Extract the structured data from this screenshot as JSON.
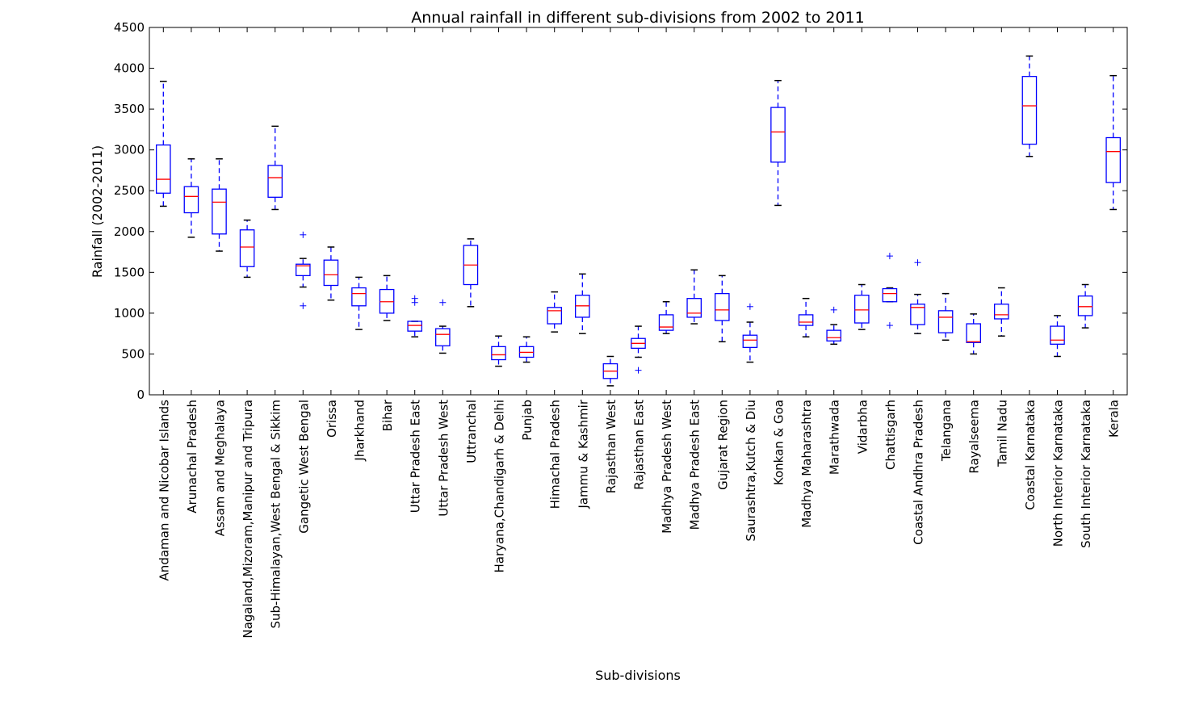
{
  "chart_data": {
    "type": "box",
    "title": "Annual rainfall in different sub-divisions from 2002 to 2011",
    "xlabel": "Sub-divisions",
    "ylabel": "Rainfall (2002-2011)",
    "ylim": [
      0,
      4500
    ],
    "yticks": [
      0,
      500,
      1000,
      1500,
      2000,
      2500,
      3000,
      3500,
      4000,
      4500
    ],
    "grid": false,
    "colors": {
      "box": "#0000ff",
      "median": "#ff0000",
      "whisker": "#0000ff",
      "flier": "#0000ff",
      "axes": "#000000"
    },
    "categories": [
      "Andaman and Nicobar Islands",
      "Arunachal Pradesh",
      "Assam and Meghalaya",
      "Nagaland,Mizoram,Manipur and Tripura",
      "Sub-Himalayan,West Bengal & Sikkim",
      "Gangetic West Bengal",
      "Orissa",
      "Jharkhand",
      "Bihar",
      "Uttar Pradesh East",
      "Uttar Pradesh West",
      "Uttranchal",
      "Haryana,Chandigarh & Delhi",
      "Punjab",
      "Himachal Pradesh",
      "Jammu & Kashmir",
      "Rajasthan West",
      "Rajasthan East",
      "Madhya Pradesh West",
      "Madhya Pradesh East",
      "Gujarat Region",
      "Saurashtra,Kutch & Diu",
      "Konkan & Goa",
      "Madhya Maharashtra",
      "Marathwada",
      "Vidarbha",
      "Chattisgarh",
      "Coastal Andhra Pradesh",
      "Telangana",
      "Rayalseema",
      "Tamil Nadu",
      "Coastal Karnataka",
      "North Interior Karnataka",
      "South Interior Karnataka",
      "Kerala"
    ],
    "boxes": [
      {
        "whislo": 2310,
        "q1": 2470,
        "med": 2640,
        "q3": 3060,
        "whishi": 3840,
        "fliers": []
      },
      {
        "whislo": 1930,
        "q1": 2230,
        "med": 2430,
        "q3": 2550,
        "whishi": 2890,
        "fliers": []
      },
      {
        "whislo": 1760,
        "q1": 1970,
        "med": 2360,
        "q3": 2520,
        "whishi": 2890,
        "fliers": []
      },
      {
        "whislo": 1440,
        "q1": 1570,
        "med": 1810,
        "q3": 2020,
        "whishi": 2140,
        "fliers": []
      },
      {
        "whislo": 2270,
        "q1": 2420,
        "med": 2660,
        "q3": 2810,
        "whishi": 3290,
        "fliers": []
      },
      {
        "whislo": 1320,
        "q1": 1460,
        "med": 1580,
        "q3": 1600,
        "whishi": 1670,
        "fliers": [
          1960,
          1090
        ]
      },
      {
        "whislo": 1160,
        "q1": 1340,
        "med": 1470,
        "q3": 1650,
        "whishi": 1810,
        "fliers": []
      },
      {
        "whislo": 800,
        "q1": 1090,
        "med": 1240,
        "q3": 1310,
        "whishi": 1440,
        "fliers": []
      },
      {
        "whislo": 910,
        "q1": 1000,
        "med": 1140,
        "q3": 1290,
        "whishi": 1460,
        "fliers": []
      },
      {
        "whislo": 710,
        "q1": 780,
        "med": 850,
        "q3": 900,
        "whishi": 900,
        "fliers": [
          1180,
          1130
        ]
      },
      {
        "whislo": 510,
        "q1": 600,
        "med": 740,
        "q3": 810,
        "whishi": 840,
        "fliers": [
          1130
        ]
      },
      {
        "whislo": 1080,
        "q1": 1350,
        "med": 1590,
        "q3": 1830,
        "whishi": 1910,
        "fliers": []
      },
      {
        "whislo": 350,
        "q1": 430,
        "med": 490,
        "q3": 590,
        "whishi": 720,
        "fliers": []
      },
      {
        "whislo": 400,
        "q1": 460,
        "med": 520,
        "q3": 590,
        "whishi": 710,
        "fliers": []
      },
      {
        "whislo": 770,
        "q1": 870,
        "med": 1030,
        "q3": 1070,
        "whishi": 1260,
        "fliers": []
      },
      {
        "whislo": 750,
        "q1": 950,
        "med": 1090,
        "q3": 1220,
        "whishi": 1480,
        "fliers": []
      },
      {
        "whislo": 110,
        "q1": 200,
        "med": 290,
        "q3": 380,
        "whishi": 470,
        "fliers": []
      },
      {
        "whislo": 460,
        "q1": 570,
        "med": 630,
        "q3": 690,
        "whishi": 840,
        "fliers": [
          300
        ]
      },
      {
        "whislo": 750,
        "q1": 790,
        "med": 830,
        "q3": 980,
        "whishi": 1140,
        "fliers": []
      },
      {
        "whislo": 870,
        "q1": 950,
        "med": 1000,
        "q3": 1180,
        "whishi": 1530,
        "fliers": []
      },
      {
        "whislo": 650,
        "q1": 910,
        "med": 1040,
        "q3": 1240,
        "whishi": 1460,
        "fliers": []
      },
      {
        "whislo": 400,
        "q1": 580,
        "med": 670,
        "q3": 730,
        "whishi": 890,
        "fliers": [
          1080
        ]
      },
      {
        "whislo": 2320,
        "q1": 2850,
        "med": 3220,
        "q3": 3520,
        "whishi": 3850,
        "fliers": []
      },
      {
        "whislo": 710,
        "q1": 850,
        "med": 890,
        "q3": 980,
        "whishi": 1180,
        "fliers": []
      },
      {
        "whislo": 620,
        "q1": 660,
        "med": 700,
        "q3": 790,
        "whishi": 860,
        "fliers": [
          1040
        ]
      },
      {
        "whislo": 800,
        "q1": 880,
        "med": 1040,
        "q3": 1220,
        "whishi": 1350,
        "fliers": []
      },
      {
        "whislo": 1140,
        "q1": 1140,
        "med": 1240,
        "q3": 1300,
        "whishi": 1310,
        "fliers": [
          1700,
          850
        ]
      },
      {
        "whislo": 750,
        "q1": 860,
        "med": 1070,
        "q3": 1110,
        "whishi": 1230,
        "fliers": [
          1620
        ]
      },
      {
        "whislo": 670,
        "q1": 760,
        "med": 950,
        "q3": 1030,
        "whishi": 1240,
        "fliers": []
      },
      {
        "whislo": 500,
        "q1": 640,
        "med": 650,
        "q3": 870,
        "whishi": 990,
        "fliers": []
      },
      {
        "whislo": 720,
        "q1": 930,
        "med": 980,
        "q3": 1110,
        "whishi": 1310,
        "fliers": []
      },
      {
        "whislo": 2920,
        "q1": 3070,
        "med": 3540,
        "q3": 3900,
        "whishi": 4150,
        "fliers": []
      },
      {
        "whislo": 470,
        "q1": 620,
        "med": 670,
        "q3": 840,
        "whishi": 970,
        "fliers": []
      },
      {
        "whislo": 820,
        "q1": 970,
        "med": 1080,
        "q3": 1210,
        "whishi": 1350,
        "fliers": []
      },
      {
        "whislo": 2270,
        "q1": 2600,
        "med": 2980,
        "q3": 3150,
        "whishi": 3910,
        "fliers": []
      }
    ]
  }
}
